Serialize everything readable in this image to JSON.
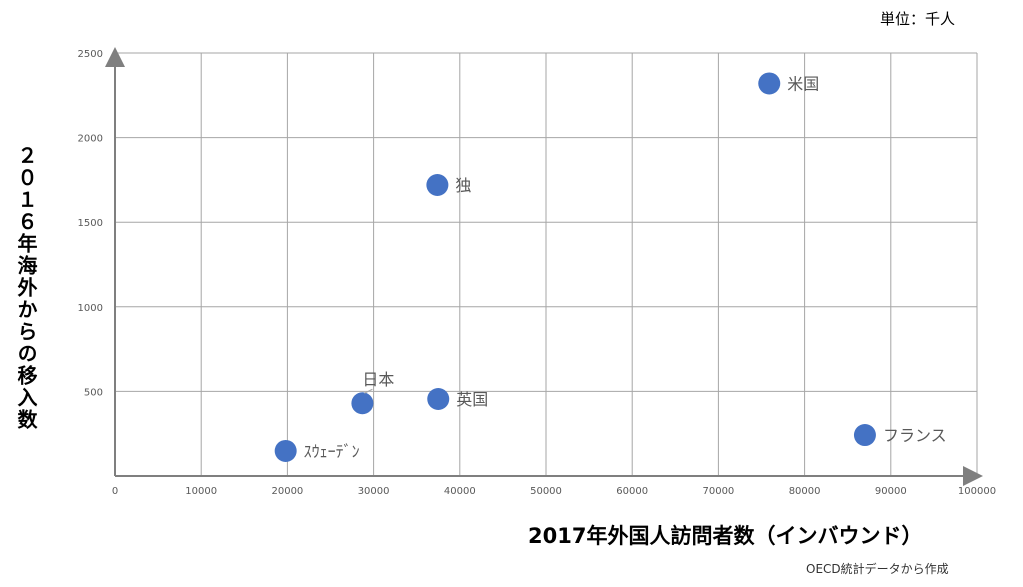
{
  "chart_data": {
    "type": "scatter",
    "unit_note": "単位：千人",
    "x_label": "2017年外国人訪問者数（インバウンド）",
    "y_label": "２０１６年海外からの移入数",
    "source": "OECD統計データから作成",
    "labels": [
      "米国",
      "独",
      "日本",
      "英国",
      "フランス",
      "ｽｳｪｰﾃﾞﾝ"
    ],
    "x": [
      75900,
      37400,
      28700,
      37500,
      87000,
      19800
    ],
    "values": [
      2320,
      1720,
      430,
      455,
      242,
      148
    ],
    "color": "#4472c4",
    "xlim": [
      0,
      100000
    ],
    "xticks": [
      0,
      10000,
      20000,
      30000,
      40000,
      50000,
      60000,
      70000,
      80000,
      90000,
      100000
    ],
    "ylim": [
      0,
      2500
    ],
    "yticks": [
      500,
      1000,
      1500,
      2000,
      2500
    ],
    "grid": true
  }
}
